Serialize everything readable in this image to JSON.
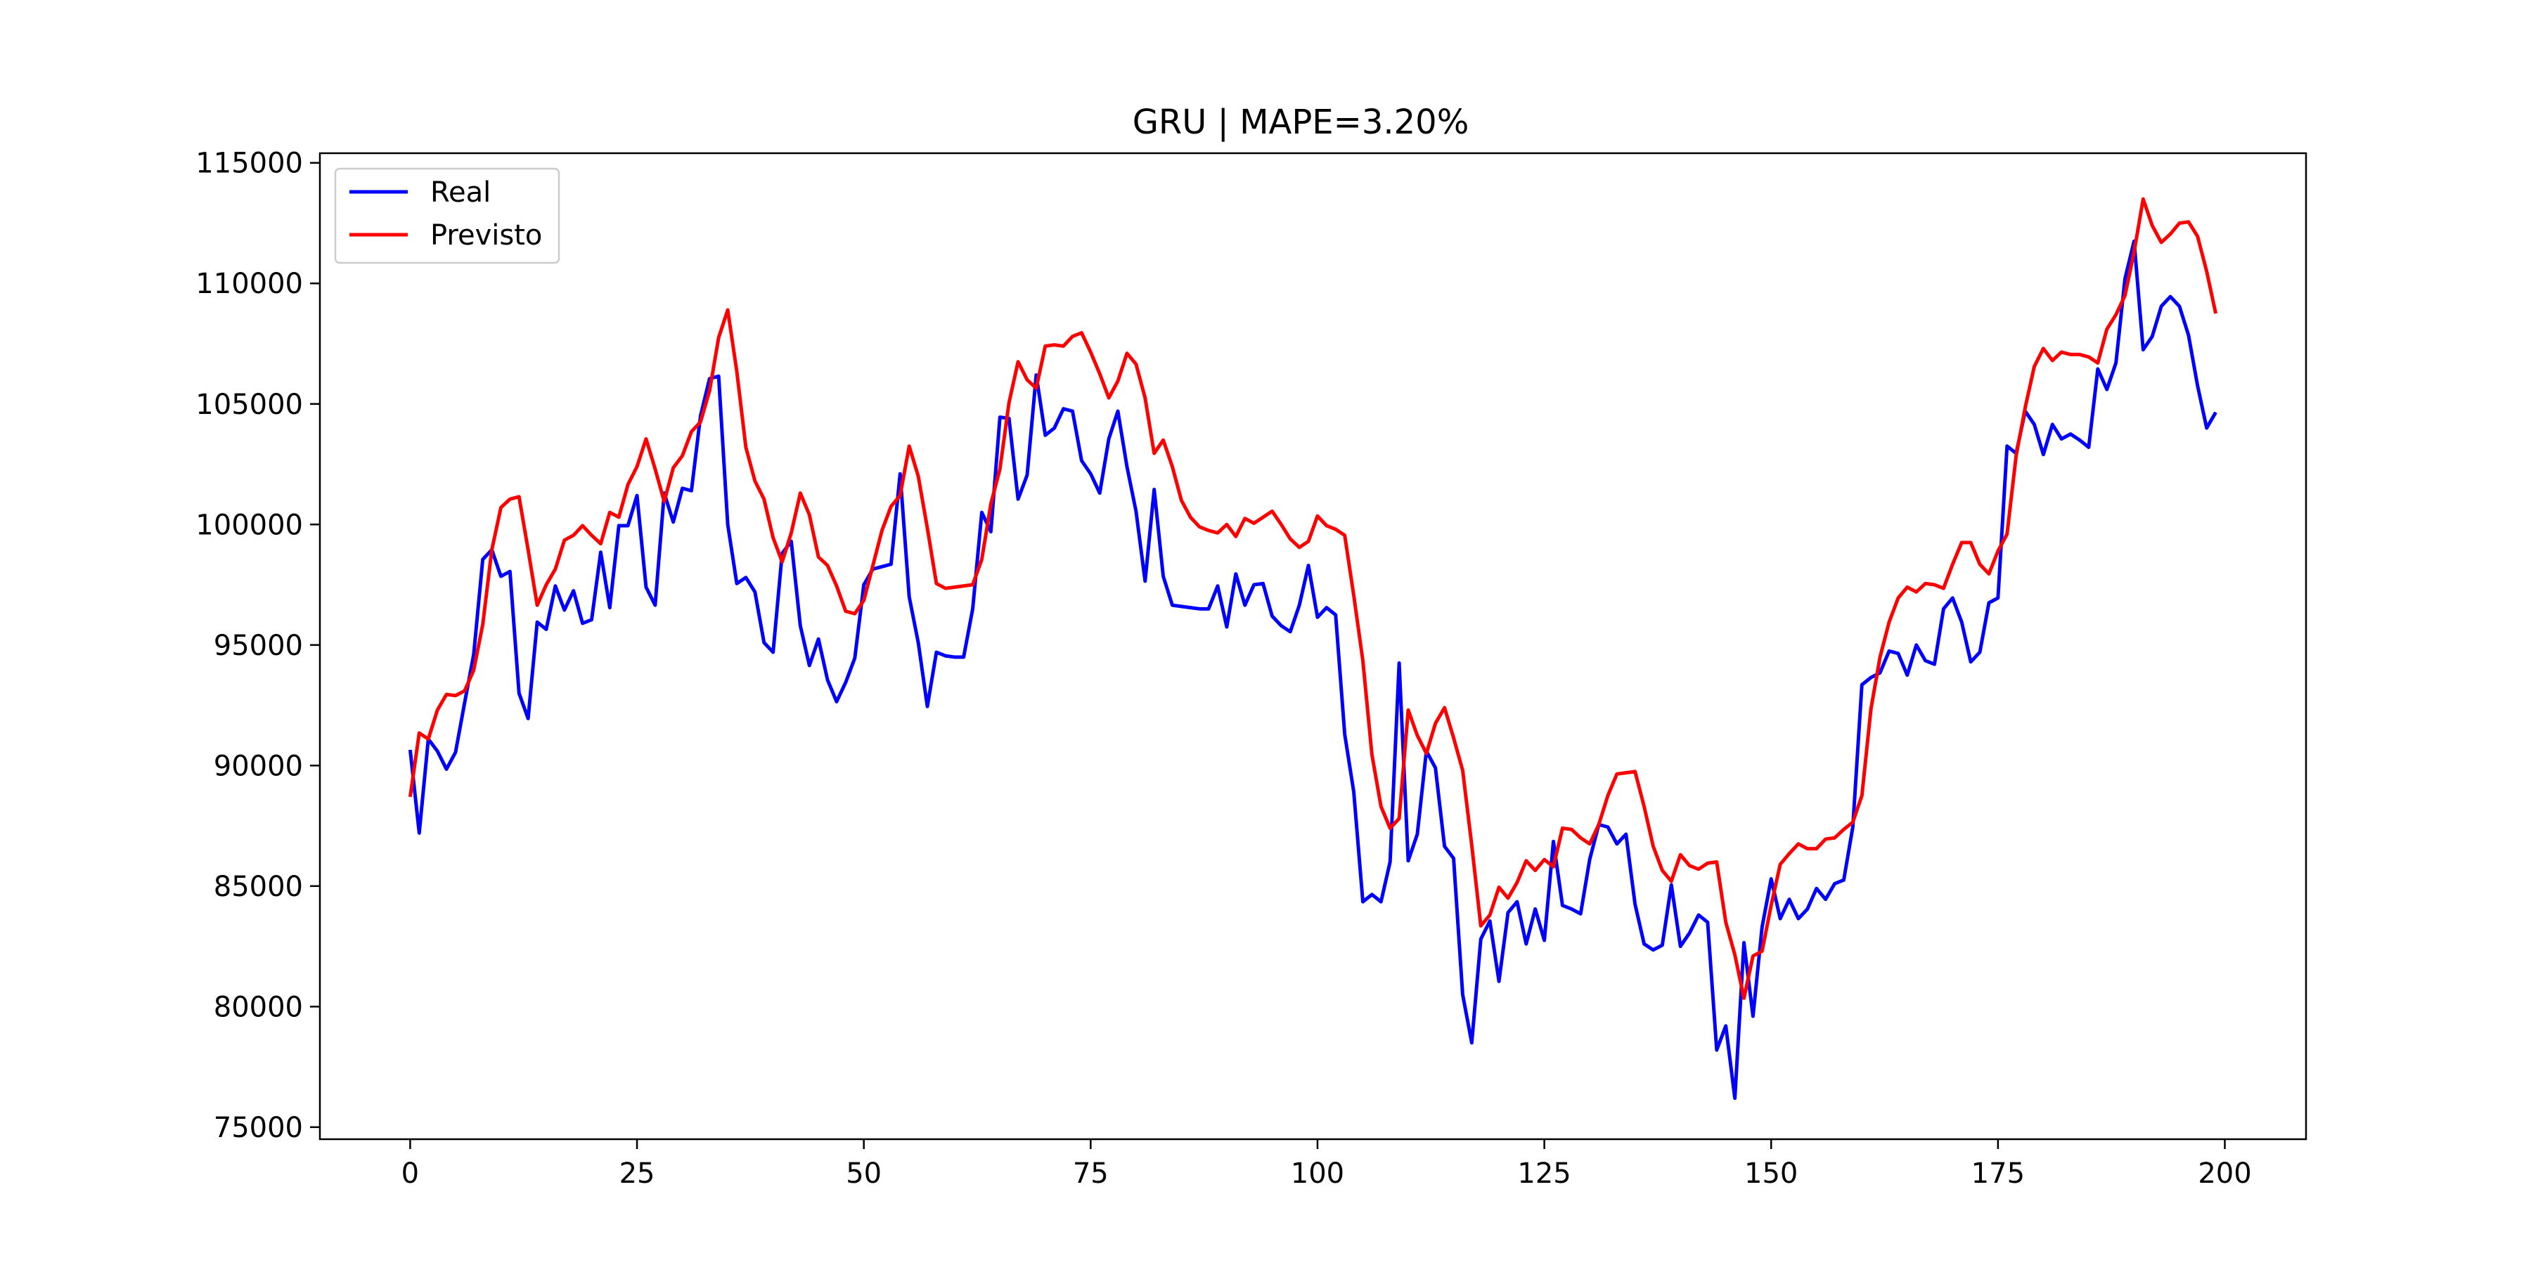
{
  "chart_data": {
    "type": "line",
    "title": "GRU | MAPE=3.20%",
    "xlabel": "",
    "ylabel": "",
    "xlim": [
      -9.95,
      208.95
    ],
    "ylim": [
      74500,
      115400
    ],
    "xticks": [
      0,
      25,
      50,
      75,
      100,
      125,
      150,
      175,
      200
    ],
    "yticks": [
      75000,
      80000,
      85000,
      90000,
      95000,
      100000,
      105000,
      110000,
      115000
    ],
    "grid": false,
    "legend": "top-left",
    "series": [
      {
        "name": "Real",
        "color": "#0000ff",
        "values": [
          90650,
          87200,
          91100,
          90600,
          89850,
          90550,
          92600,
          94600,
          98550,
          98950,
          97850,
          98050,
          93000,
          91950,
          95950,
          95650,
          97450,
          96450,
          97250,
          95900,
          96050,
          98850,
          96550,
          99950,
          99950,
          101200,
          97400,
          96650,
          101300,
          100100,
          101500,
          101400,
          104500,
          106050,
          106150,
          100000,
          97550,
          97800,
          97200,
          95100,
          94700,
          98800,
          99300,
          95800,
          94150,
          95250,
          93550,
          92650,
          93450,
          94450,
          97500,
          98150,
          98250,
          98350,
          102100,
          97000,
          95100,
          92450,
          94700,
          94550,
          94500,
          94500,
          96500,
          100500,
          99700,
          104450,
          104400,
          101050,
          102050,
          106200,
          103700,
          104000,
          104800,
          104700,
          102650,
          102100,
          101300,
          103550,
          104700,
          102400,
          100550,
          97650,
          101450,
          97850,
          96650,
          96600,
          96550,
          96500,
          96500,
          97450,
          95750,
          97950,
          96650,
          97500,
          97550,
          96200,
          95800,
          95550,
          96650,
          98300,
          96150,
          96550,
          96250,
          91300,
          88900,
          84350,
          84650,
          84350,
          86000,
          94250,
          86050,
          87150,
          90600,
          89900,
          86650,
          86150,
          80500,
          78500,
          82800,
          83550,
          81050,
          83900,
          84350,
          82600,
          84050,
          82750,
          86850,
          84200,
          84050,
          83850,
          86100,
          87550,
          87450,
          86750,
          87150,
          84250,
          82600,
          82350,
          82550,
          85050,
          82500,
          83050,
          83800,
          83500,
          78200,
          79200,
          76200,
          82650,
          79600,
          83300,
          85300,
          83650,
          84450,
          83650,
          84050,
          84900,
          84450,
          85100,
          85250,
          87450,
          93350,
          93650,
          93850,
          94750,
          94650,
          93750,
          95000,
          94350,
          94200,
          96500,
          96950,
          95950,
          94300,
          94700,
          96750,
          96950,
          103250,
          102950,
          104700,
          104150,
          102900,
          104150,
          103550,
          103750,
          103500,
          103200,
          106450,
          105600,
          106700,
          110200,
          111750,
          107250,
          107800,
          109050,
          109450,
          109050,
          107850,
          105750,
          104000,
          104650
        ]
      },
      {
        "name": "Previsto",
        "color": "#ff0000",
        "values": [
          88700,
          91350,
          91100,
          92300,
          92950,
          92900,
          93100,
          93950,
          95850,
          98950,
          100700,
          101050,
          101150,
          98950,
          96650,
          97500,
          98150,
          99350,
          99550,
          99950,
          99550,
          99200,
          100500,
          100300,
          101650,
          102400,
          103550,
          102300,
          100950,
          102350,
          102850,
          103850,
          104250,
          105550,
          107750,
          108900,
          106350,
          103200,
          101800,
          101050,
          99450,
          98450,
          99650,
          101300,
          100400,
          98650,
          98300,
          97450,
          96400,
          96300,
          96850,
          98300,
          99750,
          100750,
          101200,
          103250,
          102000,
          99850,
          97550,
          97350,
          97400,
          97450,
          97500,
          98550,
          100850,
          102300,
          105050,
          106750,
          106000,
          105650,
          107400,
          107450,
          107400,
          107800,
          107950,
          107150,
          106250,
          105250,
          105950,
          107100,
          106650,
          105250,
          102950,
          103500,
          102400,
          101000,
          100300,
          99900,
          99750,
          99650,
          100000,
          99500,
          100250,
          100050,
          100300,
          100550,
          100000,
          99400,
          99050,
          99300,
          100350,
          99950,
          99800,
          99550,
          97050,
          94350,
          90450,
          88300,
          87400,
          87800,
          92300,
          91250,
          90500,
          91750,
          92400,
          91150,
          89800,
          86700,
          83350,
          83800,
          84950,
          84500,
          85150,
          86050,
          85650,
          86100,
          85800,
          87400,
          87350,
          87000,
          86750,
          87550,
          88750,
          89650,
          89700,
          89750,
          88300,
          86650,
          85650,
          85200,
          86300,
          85850,
          85700,
          85950,
          86000,
          83500,
          82150,
          80350,
          82100,
          82300,
          84200,
          85900,
          86350,
          86750,
          86550,
          86550,
          86950,
          87000,
          87350,
          87650,
          88750,
          92350,
          94500,
          95950,
          96950,
          97400,
          97200,
          97550,
          97500,
          97350,
          98350,
          99250,
          99250,
          98350,
          97950,
          98900,
          99600,
          102850,
          104850,
          106550,
          107300,
          106800,
          107150,
          107050,
          107050,
          106950,
          106700,
          108100,
          108700,
          109500,
          111300,
          113500,
          112400,
          111700,
          112050,
          112500,
          112550,
          111950,
          110500,
          108750
        ]
      }
    ]
  }
}
